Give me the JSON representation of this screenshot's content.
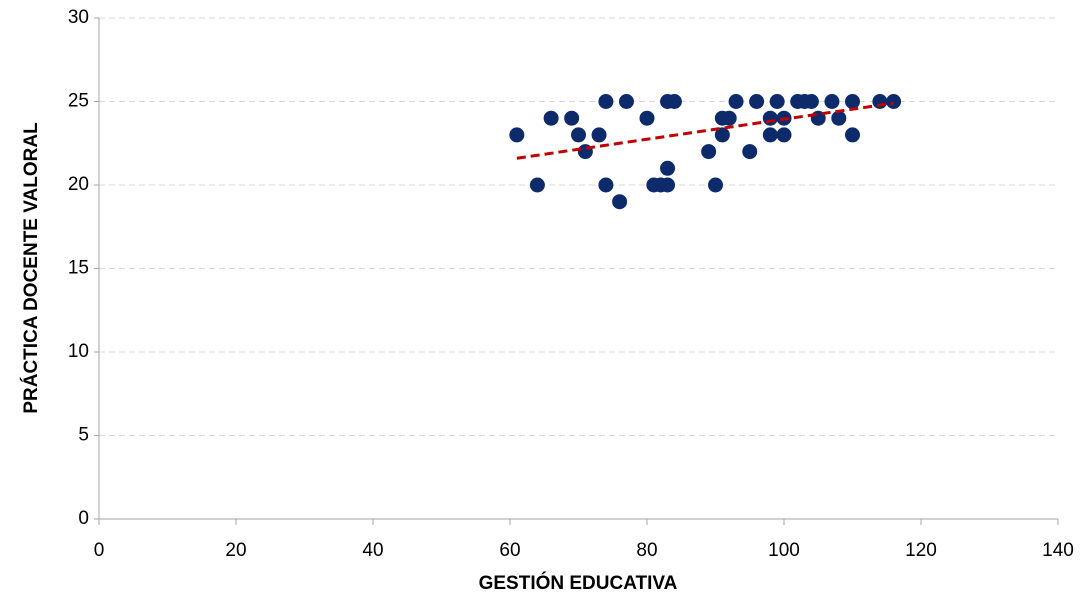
{
  "chart_data": {
    "type": "scatter",
    "x_label": "GESTIÓN EDUCATIVA",
    "y_label": "PRÁCTICA DOCENTE VALORAL",
    "xlim": [
      0,
      140
    ],
    "xticks": [
      0,
      20,
      40,
      60,
      80,
      100,
      120,
      140
    ],
    "ylim": [
      0,
      30
    ],
    "yticks": [
      0,
      5,
      10,
      15,
      20,
      25,
      30
    ],
    "grid": true,
    "series": [
      {
        "color": "#0d2a6b",
        "x": [
          61,
          64,
          66,
          69,
          70,
          71,
          73,
          74,
          74,
          76,
          77,
          80,
          81,
          82,
          83,
          83,
          83,
          84,
          89,
          90,
          91,
          91,
          92,
          93,
          95,
          96,
          98,
          98,
          99,
          100,
          100,
          102,
          103,
          104,
          105,
          107,
          108,
          110,
          110,
          114,
          116
        ],
        "values": [
          23,
          20,
          24,
          24,
          23,
          22,
          23,
          25,
          20,
          19,
          25,
          24,
          20,
          20,
          25,
          21,
          20,
          25,
          22,
          20,
          24,
          23,
          24,
          25,
          22,
          25,
          24,
          23,
          25,
          24,
          23,
          25,
          25,
          25,
          24,
          25,
          24,
          25,
          23,
          25,
          25
        ]
      }
    ],
    "trendline": {
      "color": "#c00000",
      "x": [
        61,
        116
      ],
      "values": [
        21.6,
        24.9
      ]
    }
  }
}
